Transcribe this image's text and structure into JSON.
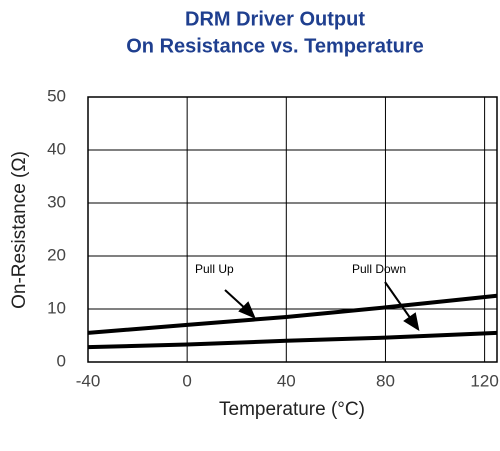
{
  "chart_data": {
    "type": "line",
    "title": [
      "DRM Driver Output",
      "On Resistance vs. Temperature"
    ],
    "x_label": "Temperature (°C)",
    "y_label": "On-Resistance (Ω)",
    "x": [
      -40,
      0,
      40,
      80,
      125
    ],
    "series": [
      {
        "name": "Pull Up",
        "color": "#000000",
        "values": [
          5.5,
          7,
          8.5,
          10.3,
          12.5
        ]
      },
      {
        "name": "Pull Down",
        "color": "#000000",
        "values": [
          2.8,
          3.3,
          4,
          4.6,
          5.5
        ]
      }
    ],
    "xlim": [
      -40,
      125
    ],
    "xticks": [
      -40,
      0,
      40,
      80,
      120
    ],
    "ylim": [
      0,
      50
    ],
    "yticks": [
      0,
      10,
      20,
      30,
      40,
      50
    ],
    "grid": true
  }
}
